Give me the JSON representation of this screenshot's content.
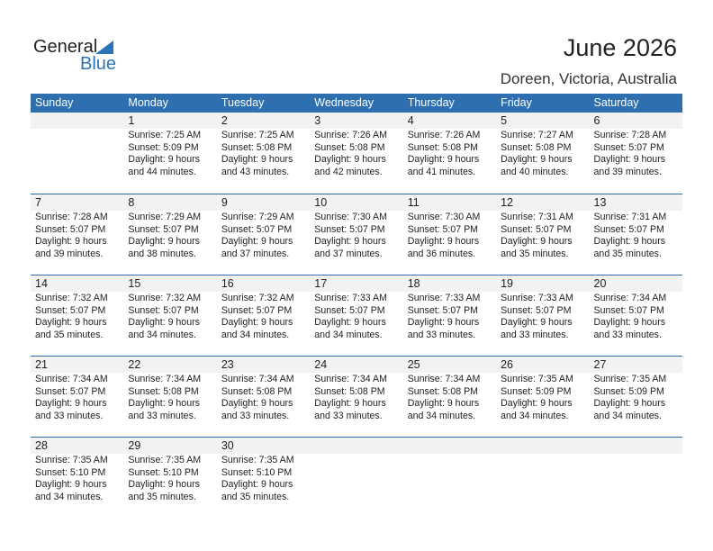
{
  "logo": {
    "general": "General",
    "blue": "Blue"
  },
  "title": "June 2026",
  "location": "Doreen, Victoria, Australia",
  "weekdays": [
    "Sunday",
    "Monday",
    "Tuesday",
    "Wednesday",
    "Thursday",
    "Friday",
    "Saturday"
  ],
  "weeks": [
    [
      null,
      {
        "day": "1",
        "sunrise": "Sunrise: 7:25 AM",
        "sunset": "Sunset: 5:09 PM",
        "daylight1": "Daylight: 9 hours",
        "daylight2": "and 44 minutes."
      },
      {
        "day": "2",
        "sunrise": "Sunrise: 7:25 AM",
        "sunset": "Sunset: 5:08 PM",
        "daylight1": "Daylight: 9 hours",
        "daylight2": "and 43 minutes."
      },
      {
        "day": "3",
        "sunrise": "Sunrise: 7:26 AM",
        "sunset": "Sunset: 5:08 PM",
        "daylight1": "Daylight: 9 hours",
        "daylight2": "and 42 minutes."
      },
      {
        "day": "4",
        "sunrise": "Sunrise: 7:26 AM",
        "sunset": "Sunset: 5:08 PM",
        "daylight1": "Daylight: 9 hours",
        "daylight2": "and 41 minutes."
      },
      {
        "day": "5",
        "sunrise": "Sunrise: 7:27 AM",
        "sunset": "Sunset: 5:08 PM",
        "daylight1": "Daylight: 9 hours",
        "daylight2": "and 40 minutes."
      },
      {
        "day": "6",
        "sunrise": "Sunrise: 7:28 AM",
        "sunset": "Sunset: 5:07 PM",
        "daylight1": "Daylight: 9 hours",
        "daylight2": "and 39 minutes."
      }
    ],
    [
      {
        "day": "7",
        "sunrise": "Sunrise: 7:28 AM",
        "sunset": "Sunset: 5:07 PM",
        "daylight1": "Daylight: 9 hours",
        "daylight2": "and 39 minutes."
      },
      {
        "day": "8",
        "sunrise": "Sunrise: 7:29 AM",
        "sunset": "Sunset: 5:07 PM",
        "daylight1": "Daylight: 9 hours",
        "daylight2": "and 38 minutes."
      },
      {
        "day": "9",
        "sunrise": "Sunrise: 7:29 AM",
        "sunset": "Sunset: 5:07 PM",
        "daylight1": "Daylight: 9 hours",
        "daylight2": "and 37 minutes."
      },
      {
        "day": "10",
        "sunrise": "Sunrise: 7:30 AM",
        "sunset": "Sunset: 5:07 PM",
        "daylight1": "Daylight: 9 hours",
        "daylight2": "and 37 minutes."
      },
      {
        "day": "11",
        "sunrise": "Sunrise: 7:30 AM",
        "sunset": "Sunset: 5:07 PM",
        "daylight1": "Daylight: 9 hours",
        "daylight2": "and 36 minutes."
      },
      {
        "day": "12",
        "sunrise": "Sunrise: 7:31 AM",
        "sunset": "Sunset: 5:07 PM",
        "daylight1": "Daylight: 9 hours",
        "daylight2": "and 35 minutes."
      },
      {
        "day": "13",
        "sunrise": "Sunrise: 7:31 AM",
        "sunset": "Sunset: 5:07 PM",
        "daylight1": "Daylight: 9 hours",
        "daylight2": "and 35 minutes."
      }
    ],
    [
      {
        "day": "14",
        "sunrise": "Sunrise: 7:32 AM",
        "sunset": "Sunset: 5:07 PM",
        "daylight1": "Daylight: 9 hours",
        "daylight2": "and 35 minutes."
      },
      {
        "day": "15",
        "sunrise": "Sunrise: 7:32 AM",
        "sunset": "Sunset: 5:07 PM",
        "daylight1": "Daylight: 9 hours",
        "daylight2": "and 34 minutes."
      },
      {
        "day": "16",
        "sunrise": "Sunrise: 7:32 AM",
        "sunset": "Sunset: 5:07 PM",
        "daylight1": "Daylight: 9 hours",
        "daylight2": "and 34 minutes."
      },
      {
        "day": "17",
        "sunrise": "Sunrise: 7:33 AM",
        "sunset": "Sunset: 5:07 PM",
        "daylight1": "Daylight: 9 hours",
        "daylight2": "and 34 minutes."
      },
      {
        "day": "18",
        "sunrise": "Sunrise: 7:33 AM",
        "sunset": "Sunset: 5:07 PM",
        "daylight1": "Daylight: 9 hours",
        "daylight2": "and 33 minutes."
      },
      {
        "day": "19",
        "sunrise": "Sunrise: 7:33 AM",
        "sunset": "Sunset: 5:07 PM",
        "daylight1": "Daylight: 9 hours",
        "daylight2": "and 33 minutes."
      },
      {
        "day": "20",
        "sunrise": "Sunrise: 7:34 AM",
        "sunset": "Sunset: 5:07 PM",
        "daylight1": "Daylight: 9 hours",
        "daylight2": "and 33 minutes."
      }
    ],
    [
      {
        "day": "21",
        "sunrise": "Sunrise: 7:34 AM",
        "sunset": "Sunset: 5:07 PM",
        "daylight1": "Daylight: 9 hours",
        "daylight2": "and 33 minutes."
      },
      {
        "day": "22",
        "sunrise": "Sunrise: 7:34 AM",
        "sunset": "Sunset: 5:08 PM",
        "daylight1": "Daylight: 9 hours",
        "daylight2": "and 33 minutes."
      },
      {
        "day": "23",
        "sunrise": "Sunrise: 7:34 AM",
        "sunset": "Sunset: 5:08 PM",
        "daylight1": "Daylight: 9 hours",
        "daylight2": "and 33 minutes."
      },
      {
        "day": "24",
        "sunrise": "Sunrise: 7:34 AM",
        "sunset": "Sunset: 5:08 PM",
        "daylight1": "Daylight: 9 hours",
        "daylight2": "and 33 minutes."
      },
      {
        "day": "25",
        "sunrise": "Sunrise: 7:34 AM",
        "sunset": "Sunset: 5:08 PM",
        "daylight1": "Daylight: 9 hours",
        "daylight2": "and 34 minutes."
      },
      {
        "day": "26",
        "sunrise": "Sunrise: 7:35 AM",
        "sunset": "Sunset: 5:09 PM",
        "daylight1": "Daylight: 9 hours",
        "daylight2": "and 34 minutes."
      },
      {
        "day": "27",
        "sunrise": "Sunrise: 7:35 AM",
        "sunset": "Sunset: 5:09 PM",
        "daylight1": "Daylight: 9 hours",
        "daylight2": "and 34 minutes."
      }
    ],
    [
      {
        "day": "28",
        "sunrise": "Sunrise: 7:35 AM",
        "sunset": "Sunset: 5:10 PM",
        "daylight1": "Daylight: 9 hours",
        "daylight2": "and 34 minutes."
      },
      {
        "day": "29",
        "sunrise": "Sunrise: 7:35 AM",
        "sunset": "Sunset: 5:10 PM",
        "daylight1": "Daylight: 9 hours",
        "daylight2": "and 35 minutes."
      },
      {
        "day": "30",
        "sunrise": "Sunrise: 7:35 AM",
        "sunset": "Sunset: 5:10 PM",
        "daylight1": "Daylight: 9 hours",
        "daylight2": "and 35 minutes."
      },
      null,
      null,
      null,
      null
    ]
  ]
}
